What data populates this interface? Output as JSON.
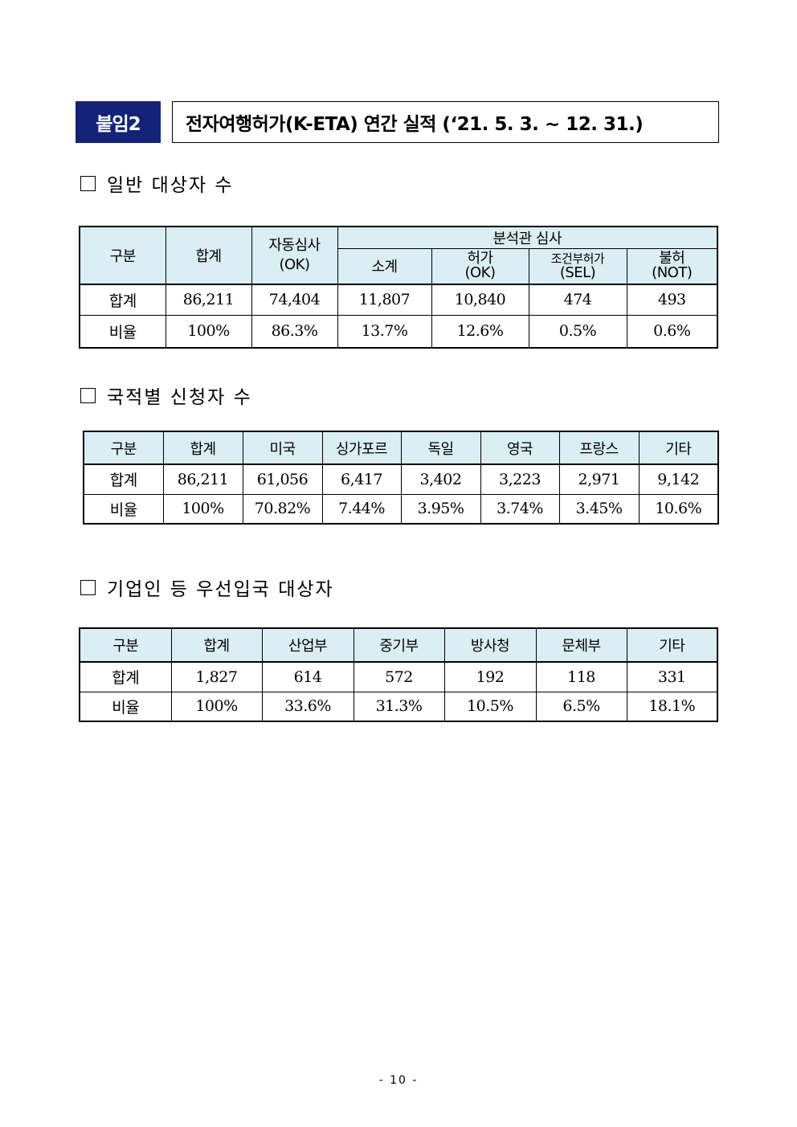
{
  "header": {
    "badge": "붙임2",
    "title": "전자여행허가(K-ETA) 연간 실적 (‘21. 5. 3. ~ 12. 31.)"
  },
  "section1": {
    "heading": "일반 대상자 수",
    "cols": {
      "category": "구분",
      "total": "합계",
      "auto_line1": "자동심사",
      "auto_line2": "(OK)",
      "analyst": "분석관 심사",
      "subtotal": "소계",
      "permit_line1": "허가",
      "permit_line2": "(OK)",
      "cond_line1": "조건부허가",
      "cond_line2": "(SEL)",
      "deny_line1": "불허",
      "deny_line2": "(NOT)"
    },
    "rows": [
      [
        "합계",
        "86,211",
        "74,404",
        "11,807",
        "10,840",
        "474",
        "493"
      ],
      [
        "비율",
        "100%",
        "86.3%",
        "13.7%",
        "12.6%",
        "0.5%",
        "0.6%"
      ]
    ]
  },
  "section2": {
    "heading": "국적별 신청자 수",
    "headers": [
      "구분",
      "합계",
      "미국",
      "싱가포르",
      "독일",
      "영국",
      "프랑스",
      "기타"
    ],
    "rows": [
      [
        "합계",
        "86,211",
        "61,056",
        "6,417",
        "3,402",
        "3,223",
        "2,971",
        "9,142"
      ],
      [
        "비율",
        "100%",
        "70.82%",
        "7.44%",
        "3.95%",
        "3.74%",
        "3.45%",
        "10.6%"
      ]
    ]
  },
  "section3": {
    "heading": "기업인 등 우선입국 대상자",
    "headers": [
      "구분",
      "합계",
      "산업부",
      "중기부",
      "방사청",
      "문체부",
      "기타"
    ],
    "rows": [
      [
        "합계",
        "1,827",
        "614",
        "572",
        "192",
        "118",
        "331"
      ],
      [
        "비율",
        "100%",
        "33.6%",
        "31.3%",
        "10.5%",
        "6.5%",
        "18.1%"
      ]
    ]
  },
  "footer": {
    "page": "- 10 -"
  }
}
